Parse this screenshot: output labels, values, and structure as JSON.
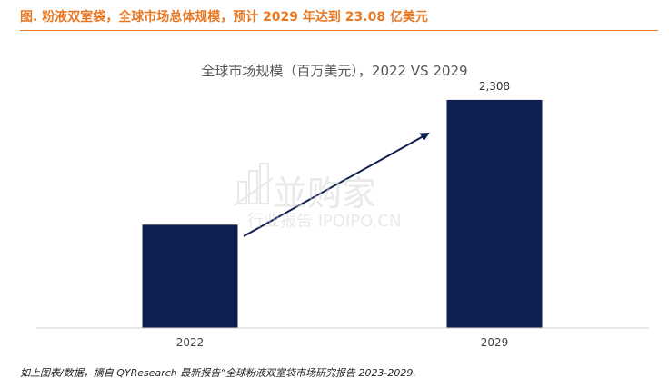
{
  "header": {
    "title": "图.  粉液双室袋，全球市场总体规模，预计 2029 年达到 23.08 亿美元"
  },
  "watermark": {
    "line1": "並购家",
    "line2": "行业报告 IPOIPO.CN"
  },
  "footer": {
    "source": "如上图表/数据，摘自 QYResearch 最新报告“全球粉液双室袋市场研究报告 2023-2029."
  },
  "colors": {
    "accent": "#e87722",
    "bar": "#0f1f4f",
    "arrow": "#0f1f4f"
  },
  "chart_data": {
    "type": "bar",
    "title": "全球市场规模（百万美元），2022 VS 2029",
    "categories": [
      "2022",
      "2029"
    ],
    "values": [
      1045,
      2308
    ],
    "value_labels": [
      "",
      "2,308"
    ],
    "ylim": [
      0,
      2500
    ],
    "xlabel": "",
    "ylabel": "",
    "grid": false,
    "legend": "none"
  }
}
